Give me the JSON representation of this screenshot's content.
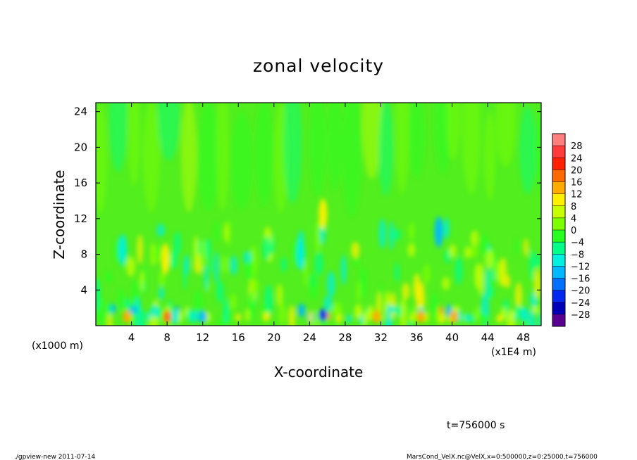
{
  "chart_data": {
    "type": "heatmap",
    "title": "zonal velocity",
    "xlabel": "X-coordinate",
    "ylabel": "Z-coordinate",
    "x_unit_label": "(x1E4 m)",
    "y_unit_label": "(x1000 m)",
    "xlim": [
      0,
      50
    ],
    "ylim": [
      0,
      25
    ],
    "x_ticks": [
      4,
      8,
      12,
      16,
      20,
      24,
      28,
      32,
      36,
      40,
      44,
      48
    ],
    "y_ticks": [
      4,
      8,
      12,
      16,
      20,
      24
    ],
    "colorbar": {
      "levels": [
        28,
        24,
        20,
        16,
        12,
        8,
        4,
        0,
        -4,
        -8,
        -12,
        -16,
        -20,
        -24,
        -28
      ],
      "colors": [
        "#ff7f7f",
        "#ff3b3b",
        "#ff2000",
        "#ff6a00",
        "#ffab00",
        "#fff000",
        "#c8ff00",
        "#7eff00",
        "#28ff20",
        "#00ff8a",
        "#00f0e0",
        "#00b8ff",
        "#0070ff",
        "#0028f0",
        "#0000b8",
        "#5a0090"
      ]
    },
    "features": [
      {
        "x": 25.5,
        "z": 1.2,
        "value": -22
      },
      {
        "x": 25.5,
        "z": 12.5,
        "value": 11
      },
      {
        "x": 38.5,
        "z": 10.5,
        "value": -14
      },
      {
        "x": 3.5,
        "z": 1.0,
        "value": 14
      },
      {
        "x": 8.0,
        "z": 1.0,
        "value": 16
      },
      {
        "x": 12.0,
        "z": 1.0,
        "value": -14
      },
      {
        "x": 7.8,
        "z": 7.5,
        "value": 10
      },
      {
        "x": 31.5,
        "z": 1.0,
        "value": 12
      },
      {
        "x": 36.5,
        "z": 1.0,
        "value": 14
      },
      {
        "x": 40.2,
        "z": 1.0,
        "value": 14
      },
      {
        "x": 3.0,
        "z": 8.5,
        "value": -12
      },
      {
        "x": 23.0,
        "z": 8.0,
        "value": -10
      }
    ],
    "annotation_time": "t=756000 s",
    "footer_left": "./gpview-new  2011-07-14",
    "footer_right": "MarsCond_VelX.nc@VelX,x=0:500000,z=0:25000,t=756000"
  }
}
